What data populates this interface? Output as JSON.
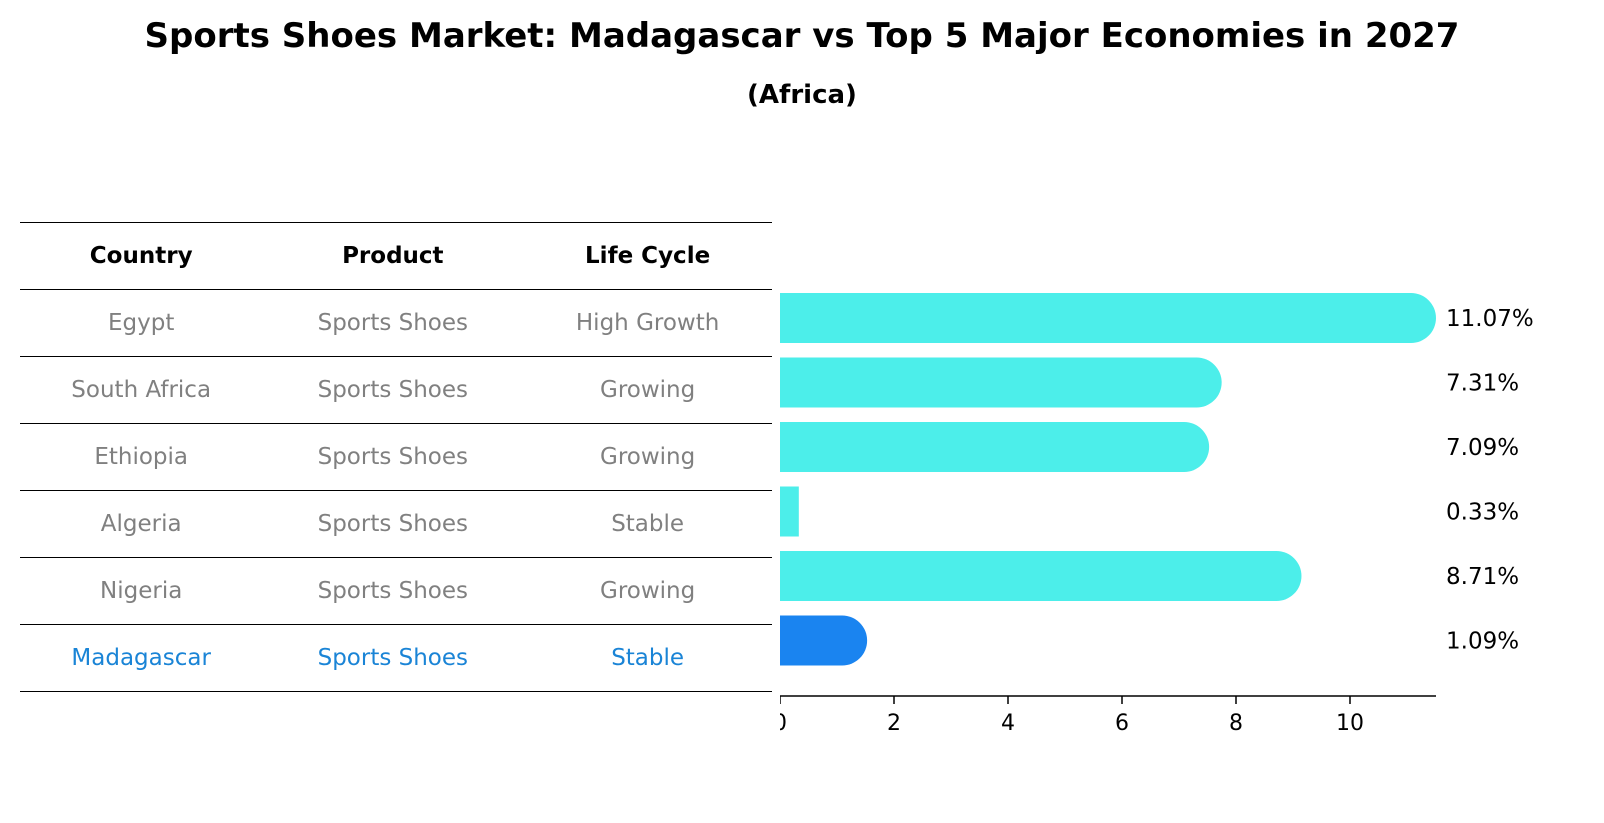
{
  "title": "Sports Shoes Market: Madagascar vs Top 5 Major Economies in 2027",
  "subtitle": "(Africa)",
  "table": {
    "headers": [
      "Country",
      "Product",
      "Life Cycle"
    ],
    "rows": [
      [
        "Egypt",
        "Sports Shoes",
        "High Growth"
      ],
      [
        "South Africa",
        "Sports Shoes",
        "Growing"
      ],
      [
        "Ethiopia",
        "Sports Shoes",
        "Growing"
      ],
      [
        "Algeria",
        "Sports Shoes",
        "Stable"
      ],
      [
        "Nigeria",
        "Sports Shoes",
        "Growing"
      ],
      [
        "Madagascar",
        "Sports Shoes",
        "Stable"
      ]
    ],
    "highlight_row": 5
  },
  "chart_data": {
    "type": "bar",
    "orientation": "horizontal",
    "categories": [
      "Egypt",
      "South Africa",
      "Ethiopia",
      "Algeria",
      "Nigeria",
      "Madagascar"
    ],
    "values": [
      11.07,
      7.31,
      7.09,
      0.33,
      8.71,
      1.09
    ],
    "labels": [
      "11.07%",
      "7.31%",
      "7.09%",
      "0.33%",
      "8.71%",
      "1.09%"
    ],
    "xlim": [
      0,
      11.6
    ],
    "xticks": [
      0,
      2,
      4,
      6,
      8,
      10
    ],
    "grid": false,
    "colors": {
      "default": "#4ceeea",
      "highlight": "#1a84f0"
    },
    "highlight_index": 5
  }
}
